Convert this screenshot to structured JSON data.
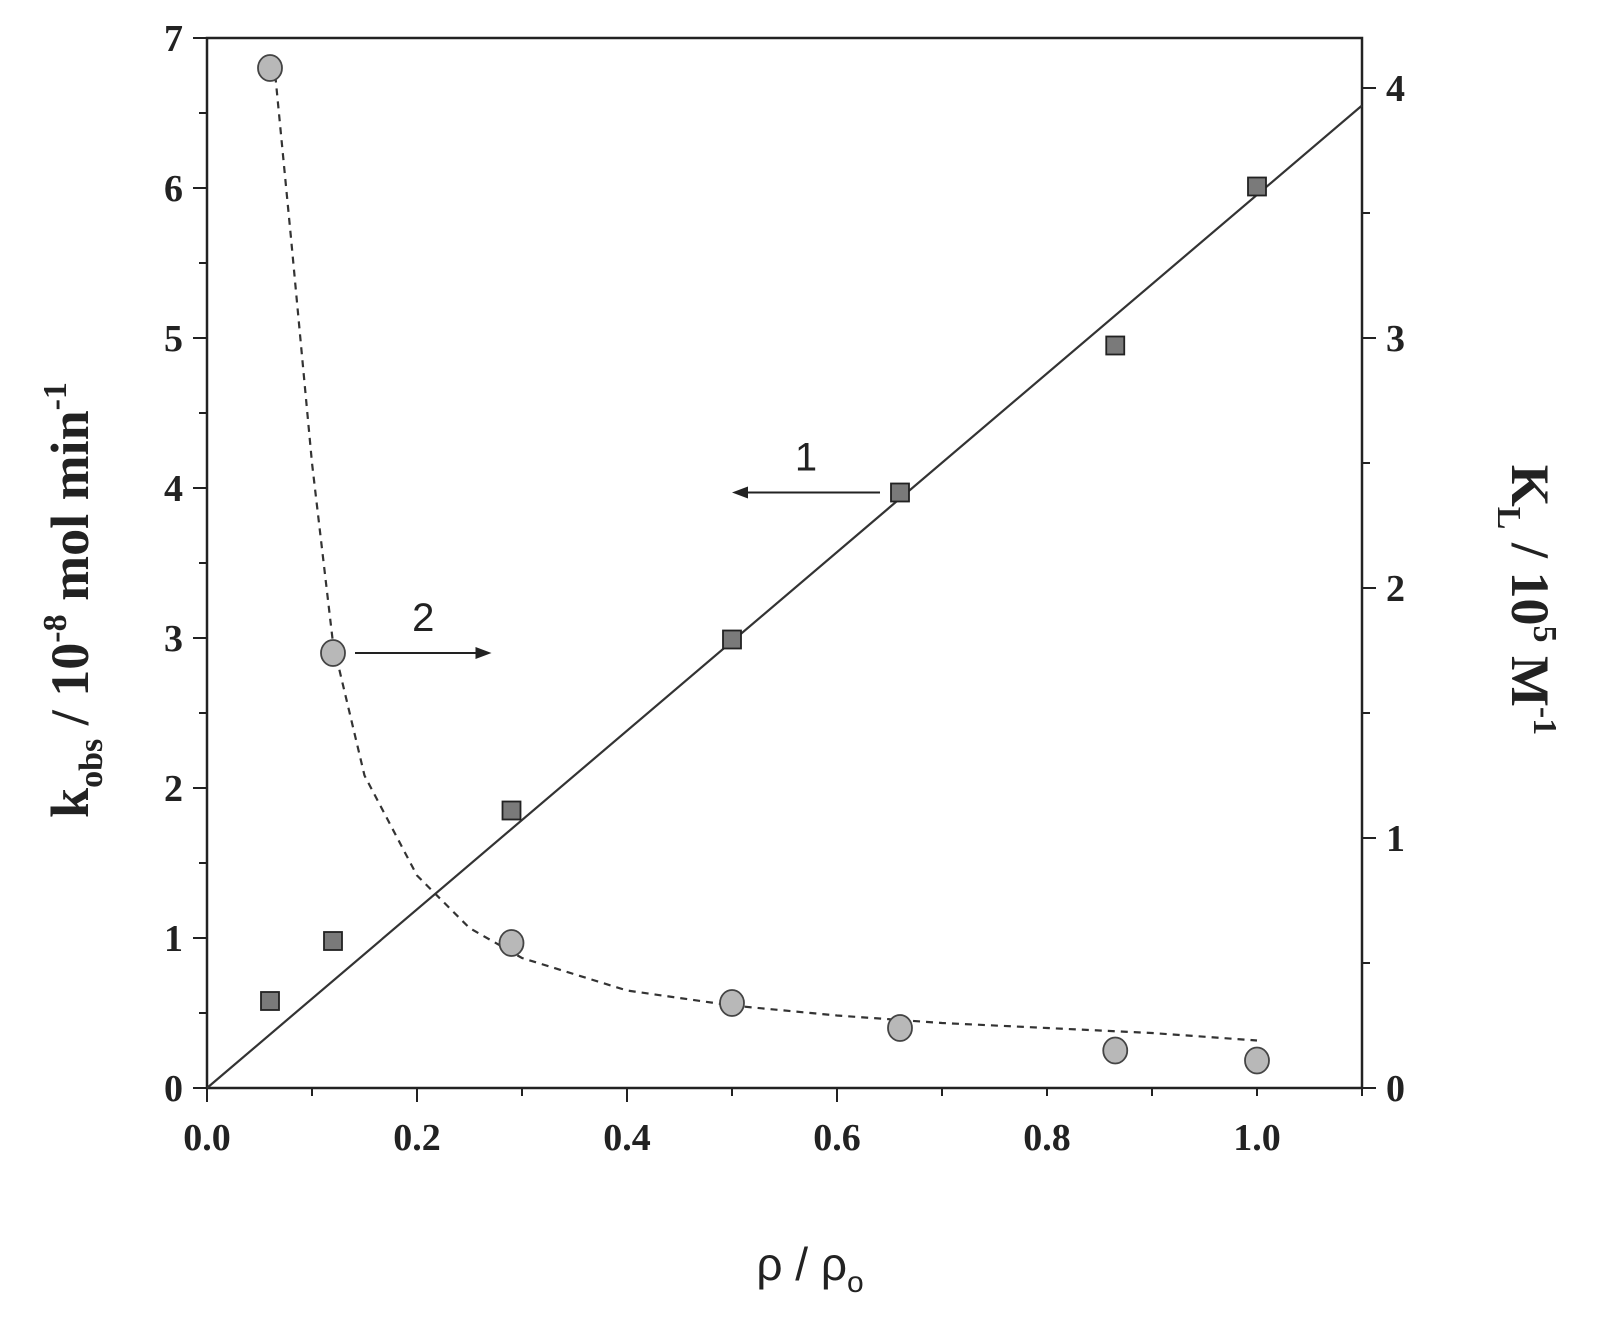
{
  "chart_data": {
    "type": "scatter",
    "x_axis": {
      "label_base": "ρ / ρ",
      "label_sub": "o",
      "range": [
        0,
        1.1
      ],
      "ticks": [
        0.0,
        0.2,
        0.4,
        0.6,
        0.8,
        1.0
      ],
      "tick_labels": [
        "0.0",
        "0.2",
        "0.4",
        "0.6",
        "0.8",
        "1.0"
      ]
    },
    "y_axis_left": {
      "label_base": "k",
      "label_sub": "obs",
      "label_mid": " / 10",
      "label_sup1": "-8",
      "label_rest": " mol min",
      "label_sup2": "-1",
      "range": [
        0,
        7
      ],
      "ticks": [
        0,
        1,
        2,
        3,
        4,
        5,
        6,
        7
      ],
      "tick_labels": [
        "0",
        "1",
        "2",
        "3",
        "4",
        "5",
        "6",
        "7"
      ]
    },
    "y_axis_right": {
      "label_base": "K",
      "label_sub": "L",
      "label_mid": " / 10",
      "label_sup1": "5",
      "label_rest": " M",
      "label_sup2": "-1",
      "range": [
        0,
        4.2
      ],
      "ticks": [
        0,
        1,
        2,
        3,
        4
      ],
      "tick_labels": [
        "0",
        "1",
        "2",
        "3",
        "4"
      ]
    },
    "series": [
      {
        "marker": "square",
        "axis": "left",
        "color": "#7a7a7a",
        "x": [
          0.06,
          0.12,
          0.29,
          0.5,
          0.66,
          0.865,
          1.0
        ],
        "y": [
          0.58,
          0.98,
          1.85,
          2.99,
          3.97,
          4.95,
          6.01
        ],
        "fit": {
          "style": "solid",
          "x": [
            0,
            1.1
          ],
          "y": [
            0,
            6.55
          ]
        }
      },
      {
        "marker": "circle",
        "axis": "right",
        "color": "#b8b8b8",
        "x": [
          0.06,
          0.12,
          0.29,
          0.5,
          0.66,
          0.865,
          1.0
        ],
        "y": [
          4.08,
          1.74,
          0.58,
          0.34,
          0.24,
          0.15,
          0.11
        ],
        "fit": {
          "style": "dashed",
          "x": [
            0.065,
            0.08,
            0.1,
            0.12,
            0.15,
            0.2,
            0.25,
            0.3,
            0.4,
            0.5,
            0.6,
            0.7,
            0.8,
            0.9,
            1.0
          ],
          "y": [
            4.05,
            3.4,
            2.5,
            1.78,
            1.25,
            0.85,
            0.64,
            0.52,
            0.39,
            0.33,
            0.29,
            0.26,
            0.24,
            0.22,
            0.19
          ]
        }
      }
    ],
    "annotations": [
      {
        "text": "1",
        "arrow": "left",
        "points_to": "left"
      },
      {
        "text": "2",
        "arrow": "right",
        "points_to": "right"
      }
    ]
  }
}
